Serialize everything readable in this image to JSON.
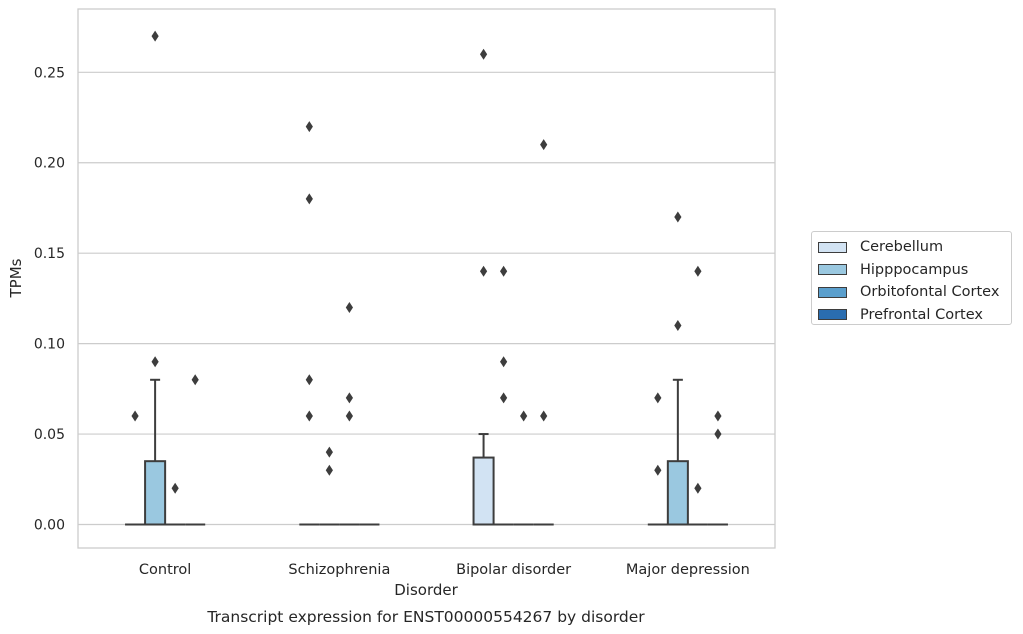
{
  "chart_data": {
    "type": "box",
    "title": "Transcript expression for ENST00000554267 by disorder",
    "xlabel": "Disorder",
    "ylabel": "TPMs",
    "categories": [
      "Control",
      "Schizophrenia",
      "Bipolar disorder",
      "Major depression"
    ],
    "ylim": [
      -0.013,
      0.285
    ],
    "yticks": [
      "0.00",
      "0.05",
      "0.10",
      "0.15",
      "0.20",
      "0.25"
    ],
    "grid": true,
    "legend_position": "right",
    "series": [
      {
        "name": "Cerebellum",
        "color": "#d2e3f3",
        "boxes": [
          {
            "q1": 0,
            "median": 0,
            "q3": 0,
            "whisker_low": 0,
            "whisker_high": 0,
            "outliers": [
              0.06
            ]
          },
          {
            "q1": 0,
            "median": 0,
            "q3": 0,
            "whisker_low": 0,
            "whisker_high": 0,
            "outliers": [
              0.06,
              0.08,
              0.18,
              0.22
            ]
          },
          {
            "q1": 0,
            "median": 0,
            "q3": 0.037,
            "whisker_low": 0,
            "whisker_high": 0.05,
            "outliers": [
              0.14,
              0.26
            ]
          },
          {
            "q1": 0,
            "median": 0,
            "q3": 0,
            "whisker_low": 0,
            "whisker_high": 0,
            "outliers": [
              0.03,
              0.07
            ]
          }
        ]
      },
      {
        "name": "Hipppocampus",
        "color": "#9ac8e0",
        "boxes": [
          {
            "q1": 0,
            "median": 0,
            "q3": 0.035,
            "whisker_low": 0,
            "whisker_high": 0.08,
            "outliers": [
              0.09,
              0.27
            ]
          },
          {
            "q1": 0,
            "median": 0,
            "q3": 0,
            "whisker_low": 0,
            "whisker_high": 0,
            "outliers": [
              0.03,
              0.04
            ]
          },
          {
            "q1": 0,
            "median": 0,
            "q3": 0,
            "whisker_low": 0,
            "whisker_high": 0,
            "outliers": [
              0.07,
              0.09,
              0.14
            ]
          },
          {
            "q1": 0,
            "median": 0,
            "q3": 0.035,
            "whisker_low": 0,
            "whisker_high": 0.08,
            "outliers": [
              0.11,
              0.17
            ]
          }
        ]
      },
      {
        "name": "Orbitofontal Cortex",
        "color": "#5a9fcd",
        "boxes": [
          {
            "q1": 0,
            "median": 0,
            "q3": 0,
            "whisker_low": 0,
            "whisker_high": 0,
            "outliers": [
              0.02
            ]
          },
          {
            "q1": 0,
            "median": 0,
            "q3": 0,
            "whisker_low": 0,
            "whisker_high": 0,
            "outliers": [
              0.06,
              0.07,
              0.12
            ]
          },
          {
            "q1": 0,
            "median": 0,
            "q3": 0,
            "whisker_low": 0,
            "whisker_high": 0,
            "outliers": [
              0.06
            ]
          },
          {
            "q1": 0,
            "median": 0,
            "q3": 0,
            "whisker_low": 0,
            "whisker_high": 0,
            "outliers": [
              0.02,
              0.14
            ]
          }
        ]
      },
      {
        "name": "Prefrontal Cortex",
        "color": "#2a6db0",
        "boxes": [
          {
            "q1": 0,
            "median": 0,
            "q3": 0,
            "whisker_low": 0,
            "whisker_high": 0,
            "outliers": [
              0.08
            ]
          },
          {
            "q1": 0,
            "median": 0,
            "q3": 0,
            "whisker_low": 0,
            "whisker_high": 0,
            "outliers": []
          },
          {
            "q1": 0,
            "median": 0,
            "q3": 0,
            "whisker_low": 0,
            "whisker_high": 0,
            "outliers": [
              0.06,
              0.21
            ]
          },
          {
            "q1": 0,
            "median": 0,
            "q3": 0,
            "whisker_low": 0,
            "whisker_high": 0,
            "outliers": [
              0.05,
              0.06
            ]
          }
        ]
      }
    ]
  }
}
